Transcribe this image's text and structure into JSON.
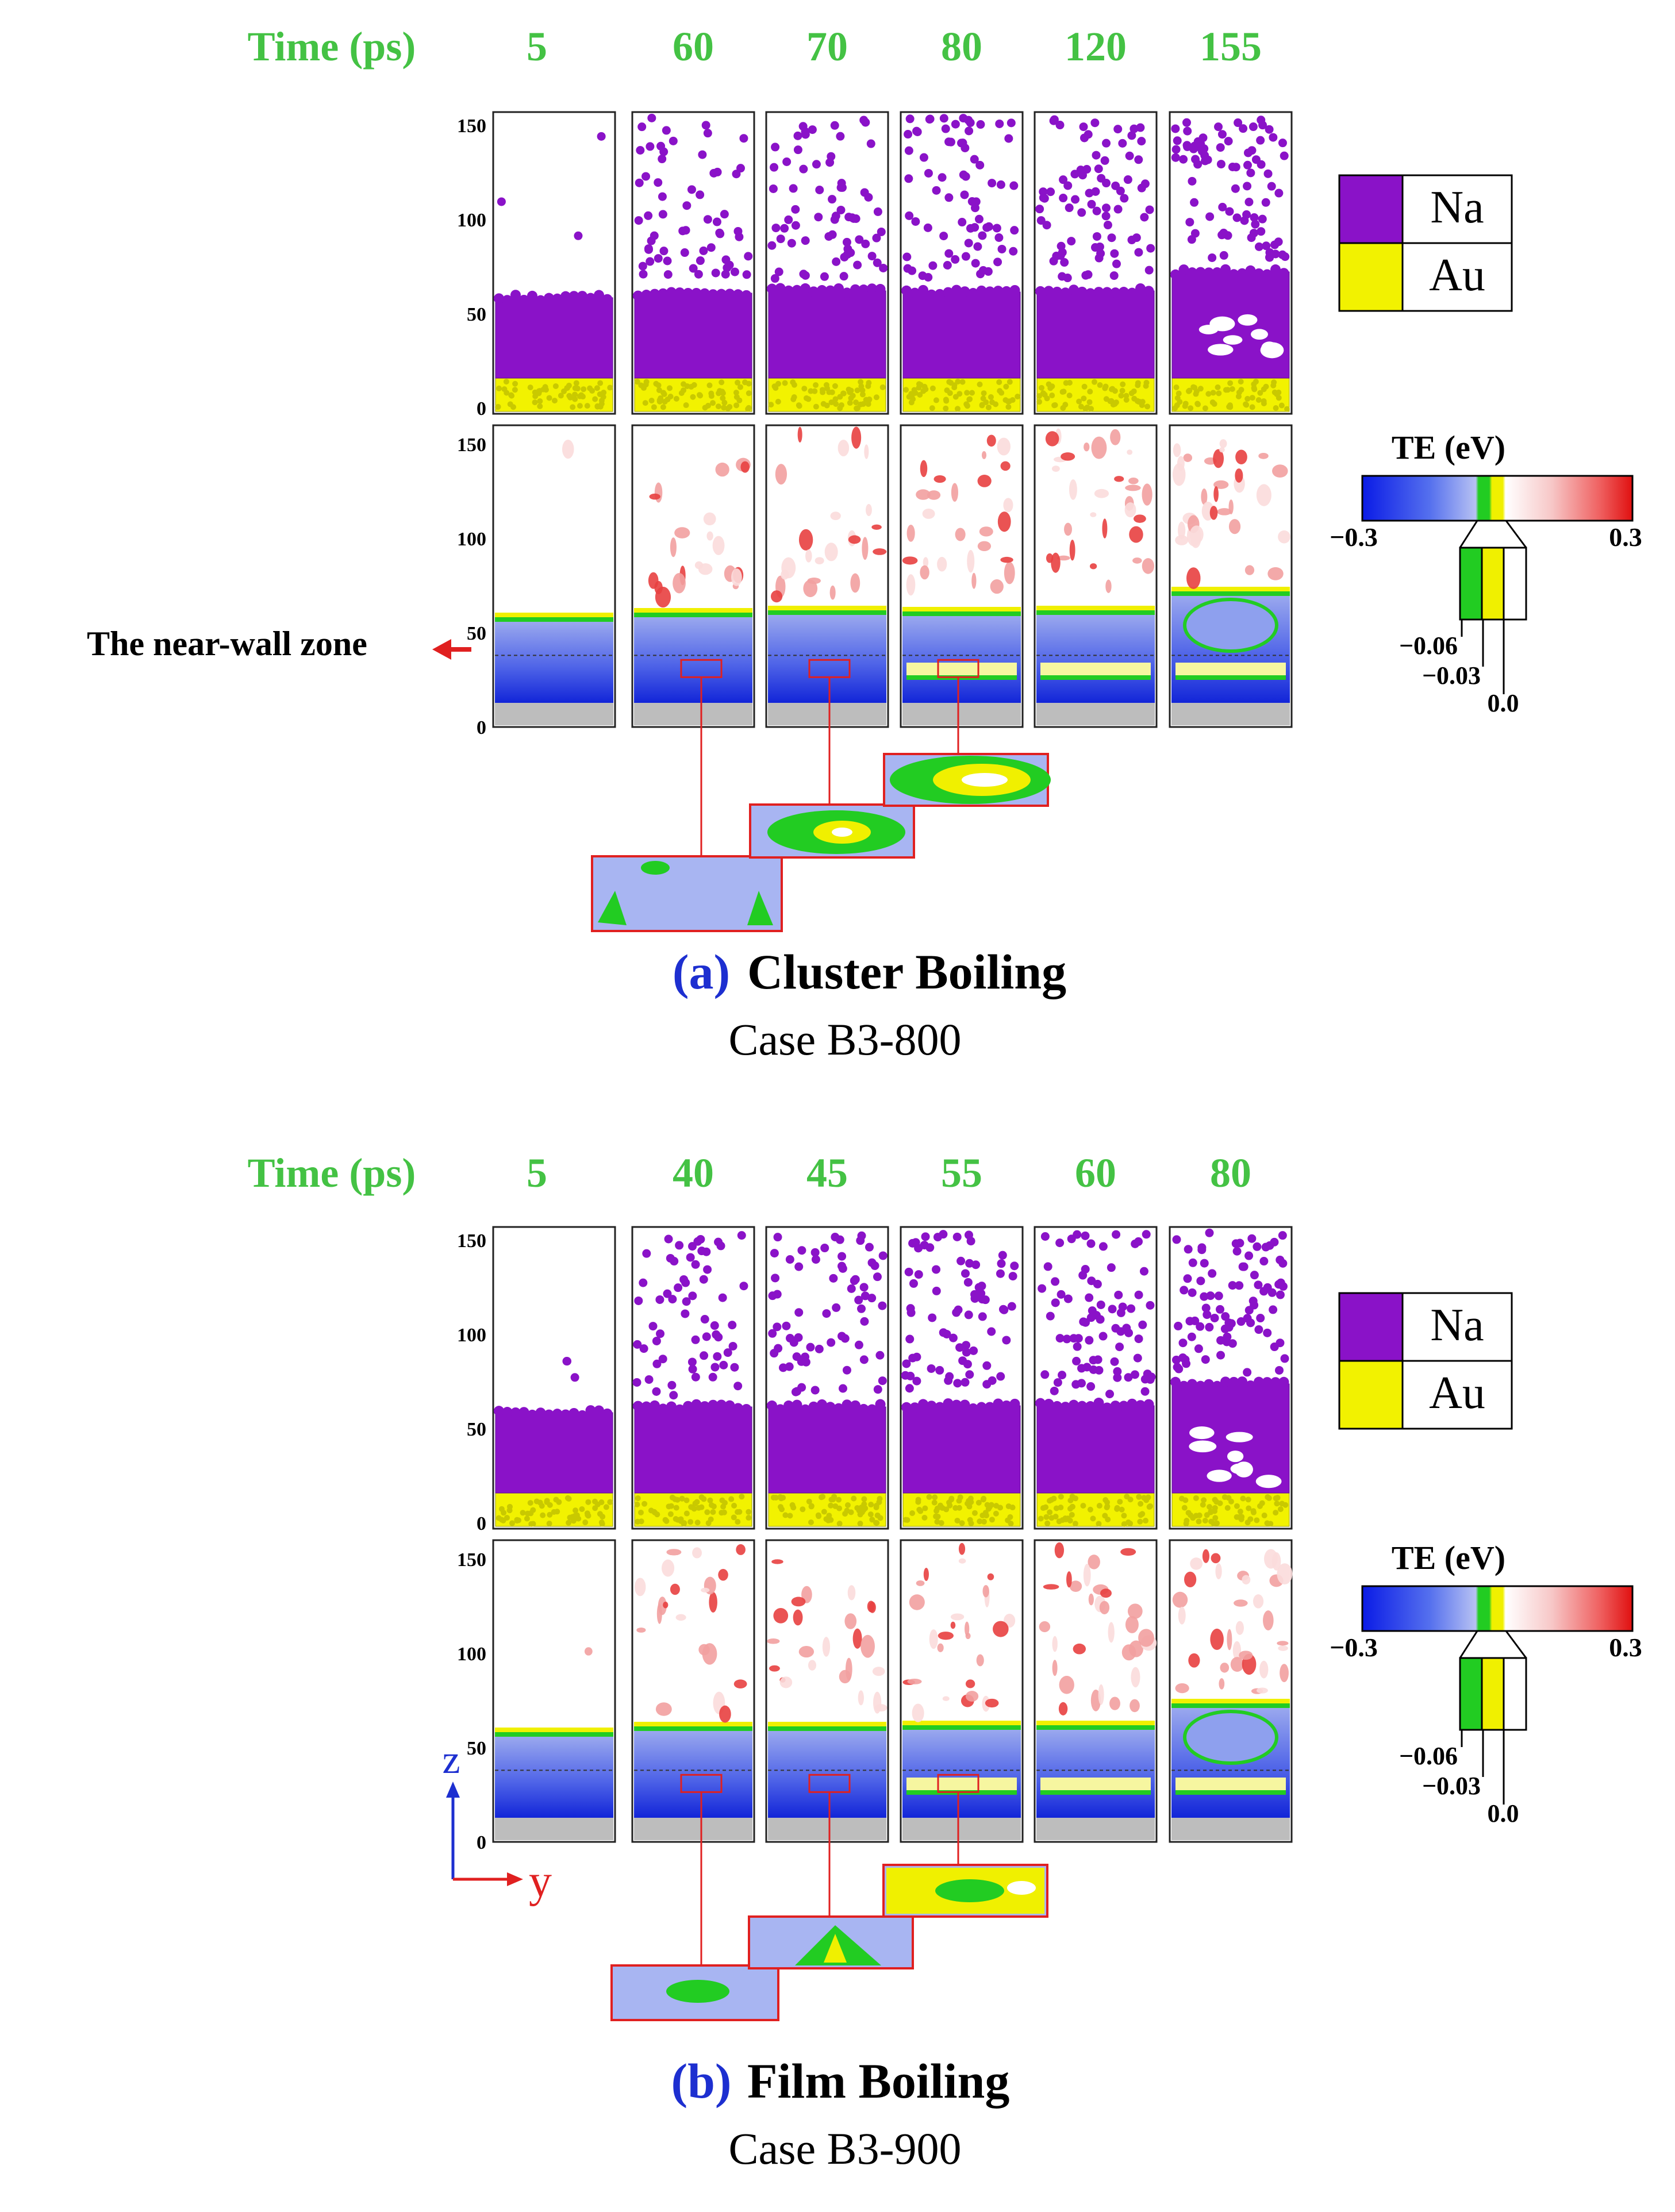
{
  "panels": [
    {
      "id": "a",
      "time_label": "Time (ps)",
      "times": [
        "5",
        "60",
        "70",
        "80",
        "120",
        "155"
      ],
      "axis_ticks": [
        "150",
        "100",
        "50",
        "0"
      ],
      "legend": {
        "na": "Na",
        "au": "Au"
      },
      "te_title": "TE (eV)",
      "te_min": "−0.3",
      "te_max": "0.3",
      "te_sub": [
        "−0.06",
        "−0.03",
        "0.0"
      ],
      "near_wall_label": "The near-wall zone",
      "letter": "(a)",
      "caption": "Cluster Boiling",
      "case": "Case B3-800"
    },
    {
      "id": "b",
      "time_label": "Time (ps)",
      "times": [
        "5",
        "40",
        "45",
        "55",
        "60",
        "80"
      ],
      "axis_ticks": [
        "150",
        "100",
        "50",
        "0"
      ],
      "legend": {
        "na": "Na",
        "au": "Au"
      },
      "te_title": "TE (eV)",
      "te_min": "−0.3",
      "te_max": "0.3",
      "te_sub": [
        "−0.06",
        "−0.03",
        "0.0"
      ],
      "axis_z": "z",
      "axis_y": "y",
      "letter": "(b)",
      "caption": "Film Boiling",
      "case": "Case B3-900"
    }
  ],
  "colors": {
    "na": "#8a12c8",
    "au": "#f2f200",
    "wall": "#bdbdbd",
    "accent_green": "#44c244",
    "red": "#e02020",
    "blue_letter": "#1d2fd0"
  }
}
